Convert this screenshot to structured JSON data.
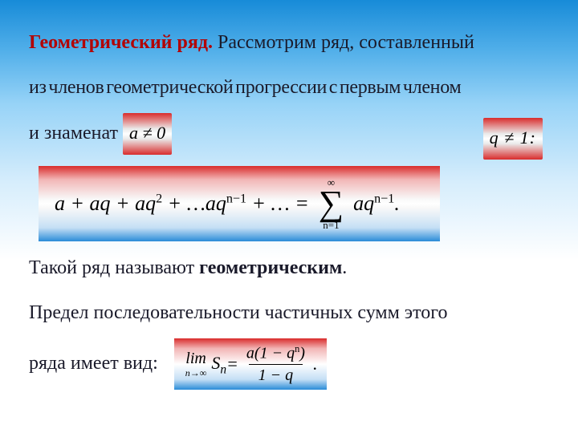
{
  "heading": {
    "title": "Геометрический ряд.",
    "rest": "Рассмотрим ряд, составленный"
  },
  "line2": "из членов геометрической прогрессии с первым членом",
  "line3_prefix": "и знаменат",
  "inline_a": "a ≠ 0",
  "inline_q": "q ≠ 1:",
  "series": {
    "lhs": "a + aq + aq",
    "exp2": "2",
    "mid": " + …aq",
    "exp_nm1": "n−1",
    "tail": " + … = ",
    "sigma_top": "∞",
    "sigma_bot": "n=1",
    "rhs": "aq",
    "rhs_exp": "n−1",
    "dot": "."
  },
  "after1_a": "Такой ряд называют ",
  "after1_b": "геометрическим",
  "after1_c": ".",
  "after2": "Предел последовательности частичных сумм этого",
  "after3": "ряда имеет вид:",
  "limit": {
    "lim": "lim",
    "sub": "n→∞",
    "S": "S",
    "Sn": "n",
    "eq": " = ",
    "num_a": "a(1 − q",
    "num_exp": "n",
    "num_b": ")",
    "den": "1 − q",
    "dot": "."
  },
  "colors": {
    "title_red": "#b30202",
    "text": "#1a1a2a",
    "grad_red": "#d92c2c",
    "grad_blue": "#2a8cd8",
    "bg_sky_top": "#178bd8"
  },
  "fonts": {
    "body_pt": 24,
    "formula_block_pt": 26,
    "formula_inline_pt": 22
  }
}
